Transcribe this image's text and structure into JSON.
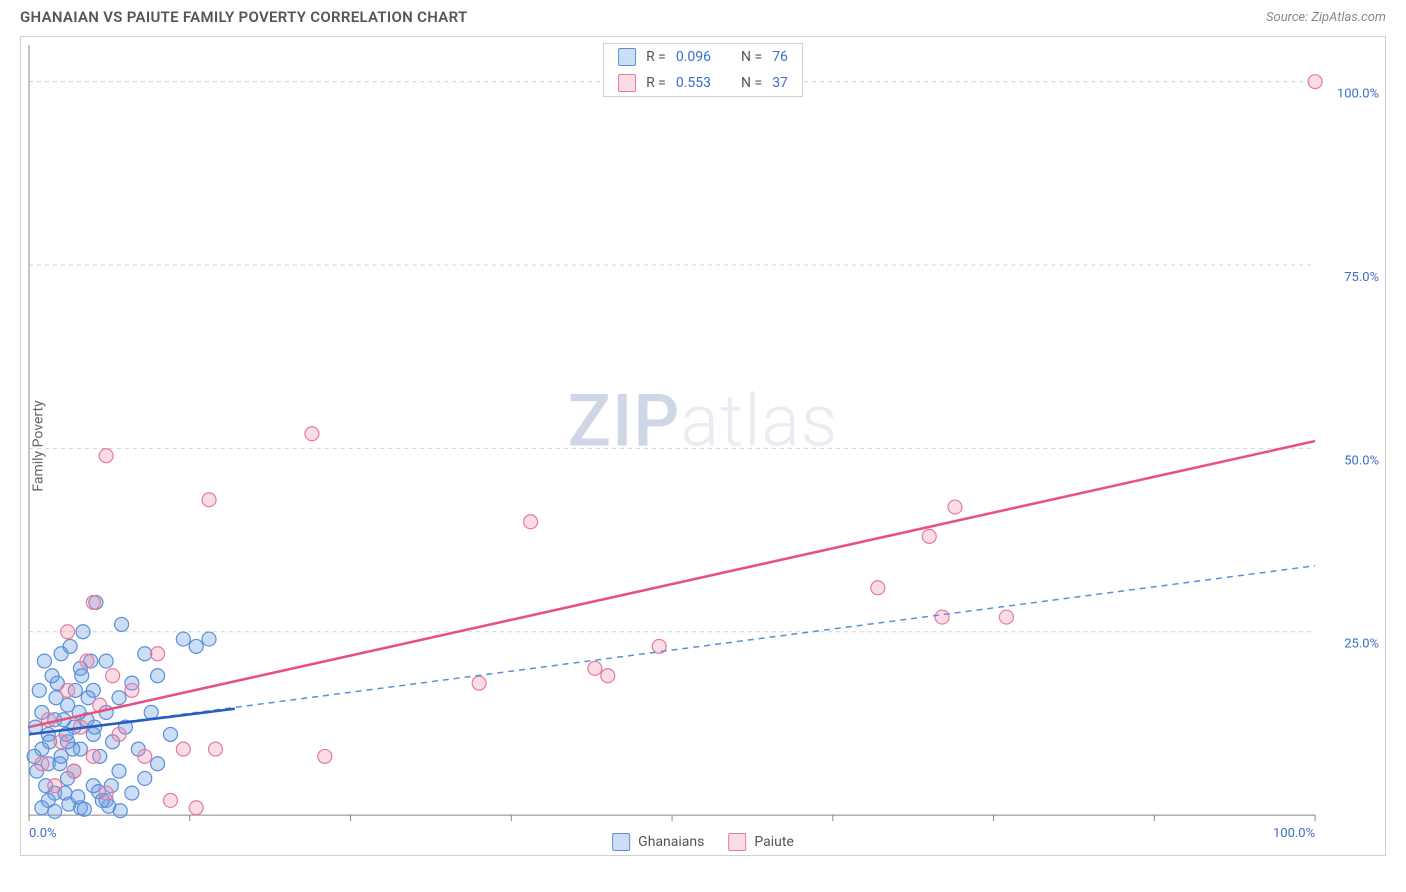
{
  "title": "GHANAIAN VS PAIUTE FAMILY POVERTY CORRELATION CHART",
  "source": "Source: ZipAtlas.com",
  "ylabel": "Family Poverty",
  "watermark": {
    "part1": "ZIP",
    "part2": "atlas"
  },
  "chart": {
    "type": "scatter",
    "background_color": "#ffffff",
    "grid_color": "#d0d0d0",
    "grid_dash": "4,4",
    "border_color": "#d0d0d0",
    "xlim": [
      0,
      100
    ],
    "ylim": [
      0,
      105
    ],
    "x_ticks": [
      0,
      12.5,
      25,
      37.5,
      50,
      62.5,
      75,
      87.5,
      100
    ],
    "x_tick_labels": [
      "0.0%",
      "",
      "",
      "",
      "",
      "",
      "",
      "",
      "100.0%"
    ],
    "y_gridlines": [
      25,
      50,
      75,
      100
    ],
    "y_tick_labels": [
      "25.0%",
      "50.0%",
      "75.0%",
      "100.0%"
    ],
    "axis_label_color": "#3b6fc9",
    "point_radius": 7,
    "series": [
      {
        "name": "Ghanaians",
        "fill": "rgba(110,160,230,0.35)",
        "stroke": "#5a8fd6",
        "R": "0.096",
        "N": "76",
        "trend_solid": {
          "x1": 0,
          "y1": 11,
          "x2": 16,
          "y2": 14.5,
          "color": "#2a5bbf",
          "width": 2.5
        },
        "trend_dash": {
          "x1": 0,
          "y1": 11,
          "x2": 100,
          "y2": 34,
          "color": "#5a8fd6",
          "width": 1.5,
          "dash": "6,5"
        },
        "points": [
          [
            0.5,
            12
          ],
          [
            1,
            9
          ],
          [
            1,
            14
          ],
          [
            1.5,
            7
          ],
          [
            1.5,
            11
          ],
          [
            2,
            3
          ],
          [
            2,
            13
          ],
          [
            2.2,
            18
          ],
          [
            2.5,
            8
          ],
          [
            2.5,
            22
          ],
          [
            3,
            5
          ],
          [
            3,
            10
          ],
          [
            3,
            15
          ],
          [
            3.2,
            23
          ],
          [
            3.5,
            6
          ],
          [
            3.5,
            12
          ],
          [
            4,
            1
          ],
          [
            4,
            9
          ],
          [
            4,
            20
          ],
          [
            4.2,
            25
          ],
          [
            4.5,
            13
          ],
          [
            5,
            4
          ],
          [
            5,
            11
          ],
          [
            5,
            17
          ],
          [
            5.2,
            29
          ],
          [
            5.5,
            8
          ],
          [
            6,
            2
          ],
          [
            6,
            14
          ],
          [
            6,
            21
          ],
          [
            6.5,
            10
          ],
          [
            7,
            6
          ],
          [
            7,
            16
          ],
          [
            7.2,
            26
          ],
          [
            7.5,
            12
          ],
          [
            8,
            3
          ],
          [
            8,
            18
          ],
          [
            8.5,
            9
          ],
          [
            9,
            5
          ],
          [
            9,
            22
          ],
          [
            9.5,
            14
          ],
          [
            10,
            7
          ],
          [
            10,
            19
          ],
          [
            11,
            11
          ],
          [
            12,
            24
          ],
          [
            13,
            23
          ],
          [
            14,
            24
          ],
          [
            1,
            1
          ],
          [
            1.5,
            2
          ],
          [
            2,
            0.5
          ],
          [
            2.8,
            3
          ],
          [
            3.1,
            1.5
          ],
          [
            3.8,
            2.5
          ],
          [
            4.3,
            0.8
          ],
          [
            5.4,
            3.2
          ],
          [
            6.2,
            1.2
          ],
          [
            7.1,
            0.6
          ],
          [
            2.1,
            16
          ],
          [
            2.7,
            13
          ],
          [
            3.6,
            17
          ],
          [
            4.1,
            19
          ],
          [
            4.8,
            21
          ],
          [
            1.2,
            21
          ],
          [
            1.8,
            19
          ],
          [
            0.8,
            17
          ],
          [
            0.4,
            8
          ],
          [
            0.6,
            6
          ],
          [
            1.3,
            4
          ],
          [
            1.6,
            10
          ],
          [
            2.4,
            7
          ],
          [
            2.9,
            11
          ],
          [
            3.4,
            9
          ],
          [
            3.9,
            14
          ],
          [
            4.6,
            16
          ],
          [
            5.1,
            12
          ],
          [
            5.7,
            2
          ],
          [
            6.4,
            4
          ]
        ]
      },
      {
        "name": "Paiute",
        "fill": "rgba(240,140,170,0.30)",
        "stroke": "#e77aa0",
        "R": "0.553",
        "N": "37",
        "trend_solid": {
          "x1": 0,
          "y1": 12,
          "x2": 100,
          "y2": 51,
          "color": "#e7517e",
          "width": 2.5
        },
        "points": [
          [
            1,
            7
          ],
          [
            1.5,
            13
          ],
          [
            2,
            4
          ],
          [
            2.5,
            10
          ],
          [
            3,
            17
          ],
          [
            3.5,
            6
          ],
          [
            4,
            12
          ],
          [
            4.5,
            21
          ],
          [
            5,
            8
          ],
          [
            5.5,
            15
          ],
          [
            6,
            3
          ],
          [
            6.5,
            19
          ],
          [
            7,
            11
          ],
          [
            8,
            17
          ],
          [
            9,
            8
          ],
          [
            10,
            22
          ],
          [
            11,
            2
          ],
          [
            12,
            9
          ],
          [
            13,
            1
          ],
          [
            5,
            29
          ],
          [
            6,
            49
          ],
          [
            14,
            43
          ],
          [
            14.5,
            9
          ],
          [
            22,
            52
          ],
          [
            23,
            8
          ],
          [
            35,
            18
          ],
          [
            39,
            40
          ],
          [
            45,
            19
          ],
          [
            44,
            20
          ],
          [
            49,
            23
          ],
          [
            66,
            31
          ],
          [
            70,
            38
          ],
          [
            72,
            42
          ],
          [
            71,
            27
          ],
          [
            76,
            27
          ],
          [
            100,
            100
          ],
          [
            3,
            25
          ]
        ]
      }
    ]
  },
  "legend_top": [
    {
      "swatch": "blue",
      "r_label": "R =",
      "r_val": "0.096",
      "n_label": "N =",
      "n_val": "76"
    },
    {
      "swatch": "pink",
      "r_label": "R =",
      "r_val": "0.553",
      "n_label": "N =",
      "n_val": "37"
    }
  ],
  "legend_bottom": [
    {
      "swatch": "blue",
      "label": "Ghanaians"
    },
    {
      "swatch": "pink",
      "label": "Paiute"
    }
  ]
}
